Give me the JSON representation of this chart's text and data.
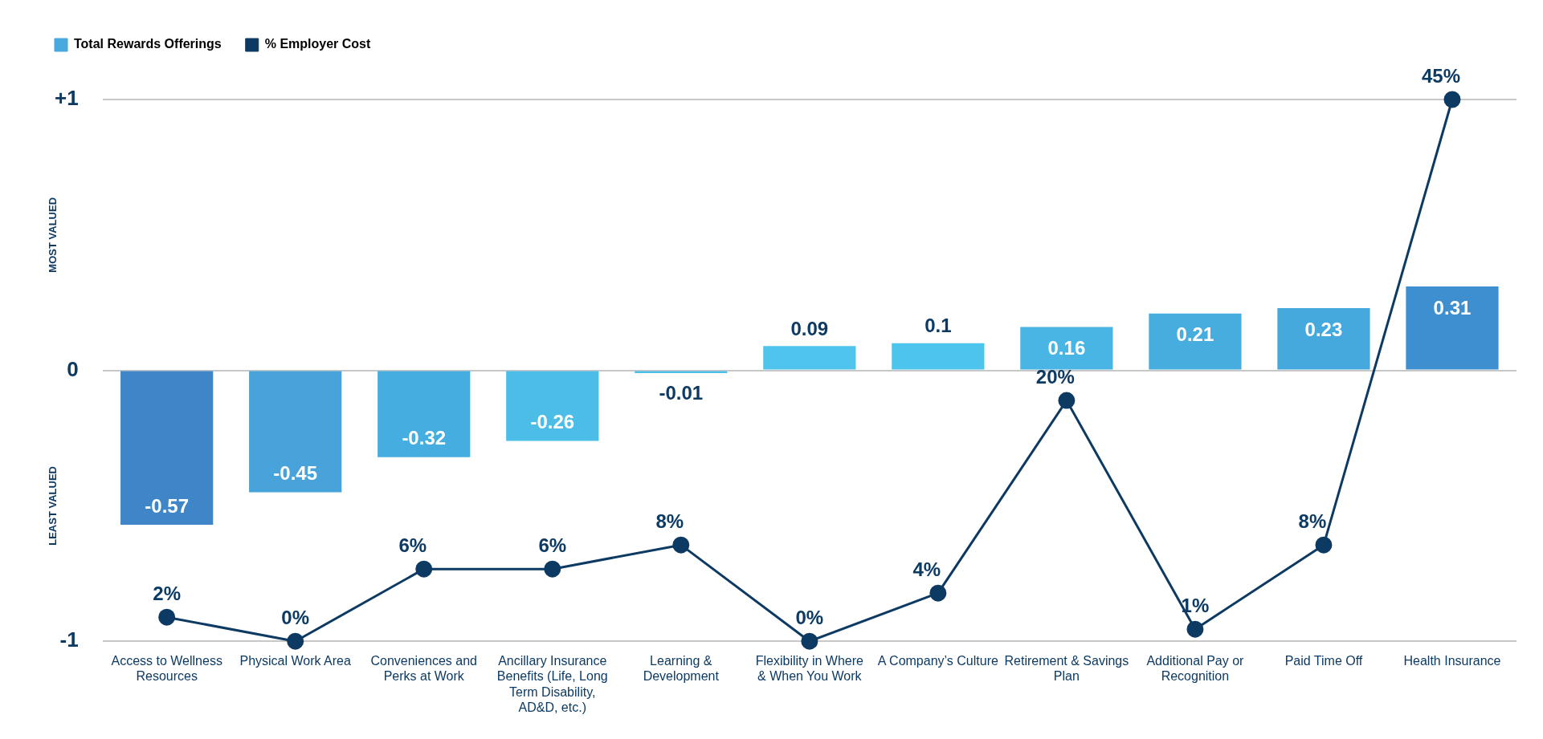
{
  "chart_data": {
    "type": "bar",
    "categories": [
      "Access to Wellness Resources",
      "Physical Work Area",
      "Conveniences and Perks at Work",
      "Ancillary Insurance Benefits (Life, Long Term Disability, AD&D, etc.)",
      "Learning & Development",
      "Flexibility in Where & When You Work",
      "A Company’s Culture",
      "Retirement & Savings Plan",
      "Additional Pay or Recognition",
      "Paid Time Off",
      "Health Insurance"
    ],
    "series": [
      {
        "name": "Total Rewards Offerings",
        "color": "#47a9de",
        "colors": [
          "#3f86c9",
          "#47a3d9",
          "#45ade0",
          "#4bbde6",
          "#4cc0e8",
          "#4fc4ec",
          "#4cc4ec",
          "#49b5e4",
          "#47addf",
          "#45a9de",
          "#3e8fd0"
        ],
        "values": [
          -0.57,
          -0.45,
          -0.32,
          -0.26,
          -0.01,
          0.09,
          0.1,
          0.16,
          0.21,
          0.23,
          0.31
        ],
        "value_labels": [
          "-0.57",
          "-0.45",
          "-0.32",
          "-0.26",
          "-0.01",
          "0.09",
          "0.1",
          "0.16",
          "0.21",
          "0.23",
          "0.31"
        ]
      },
      {
        "name": "% Employer Cost",
        "type": "line",
        "axis": "y2",
        "color": "#0d3a63",
        "values": [
          2,
          0,
          6,
          6,
          8,
          0,
          4,
          20,
          1,
          8,
          45
        ],
        "value_labels": [
          "2%",
          "0%",
          "6%",
          "6%",
          "8%",
          "0%",
          "4%",
          "20%",
          "1%",
          "8%",
          "45%"
        ]
      }
    ],
    "ylim": [
      -1,
      1
    ],
    "yticks": [
      {
        "value": 1,
        "label": "+1"
      },
      0,
      -1
    ],
    "grid": "y",
    "legend": "top left",
    "marker": "circle",
    "line_style": "solid",
    "annotations": [
      "MOST VALUED",
      "LEAST VALUED"
    ]
  }
}
